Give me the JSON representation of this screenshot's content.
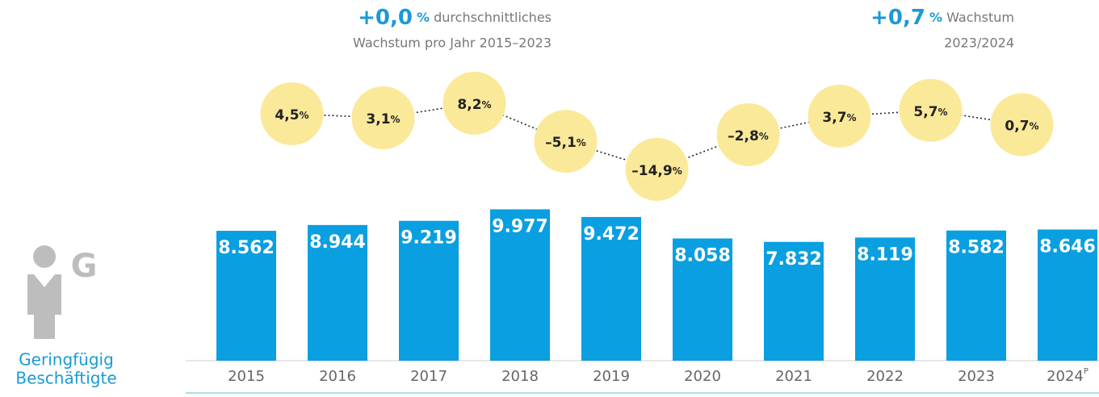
{
  "chart_data": {
    "type": "bar",
    "label": [
      "Geringfügig",
      "Beschäftigte"
    ],
    "icon_letter": "G",
    "headline_left": {
      "value": 0.0,
      "value_label": "+0,0",
      "unit": "%",
      "text": "durchschnittliches",
      "line2": "Wachstum pro Jahr 2015–2023"
    },
    "headline_right": {
      "value": 0.7,
      "value_label": "+0,7",
      "unit": "%",
      "text": "Wachstum",
      "line2": "2023/2024"
    },
    "categories": [
      "2015",
      "2016",
      "2017",
      "2018",
      "2019",
      "2020",
      "2021",
      "2022",
      "2023",
      "2024"
    ],
    "category_marks": [
      null,
      null,
      null,
      null,
      null,
      null,
      null,
      null,
      null,
      "P"
    ],
    "values": [
      8562,
      8944,
      9219,
      9977,
      9472,
      8058,
      7832,
      8119,
      8582,
      8646
    ],
    "value_labels": [
      "8.562",
      "8.944",
      "9.219",
      "9.977",
      "9.472",
      "8.058",
      "7.832",
      "8.119",
      "8.582",
      "8.646"
    ],
    "color": "#0a9fe0",
    "growth": {
      "values": [
        4.5,
        3.1,
        8.2,
        -5.1,
        -14.9,
        -2.8,
        3.7,
        5.7,
        0.7
      ],
      "value_labels": [
        "4,5",
        "3,1",
        "8,2",
        "–5,1",
        "–14,9",
        "–2,8",
        "3,7",
        "5,7",
        "0,7"
      ],
      "unit": "%",
      "color": "#fbe99a"
    }
  }
}
